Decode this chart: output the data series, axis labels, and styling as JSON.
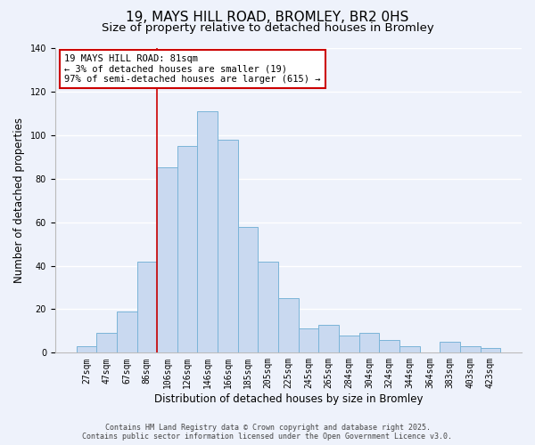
{
  "title": "19, MAYS HILL ROAD, BROMLEY, BR2 0HS",
  "subtitle": "Size of property relative to detached houses in Bromley",
  "xlabel": "Distribution of detached houses by size in Bromley",
  "ylabel": "Number of detached properties",
  "bar_labels": [
    "27sqm",
    "47sqm",
    "67sqm",
    "86sqm",
    "106sqm",
    "126sqm",
    "146sqm",
    "166sqm",
    "185sqm",
    "205sqm",
    "225sqm",
    "245sqm",
    "265sqm",
    "284sqm",
    "304sqm",
    "324sqm",
    "344sqm",
    "364sqm",
    "383sqm",
    "403sqm",
    "423sqm"
  ],
  "bar_values": [
    3,
    9,
    19,
    42,
    85,
    95,
    111,
    98,
    58,
    42,
    25,
    11,
    13,
    8,
    9,
    6,
    3,
    0,
    5,
    3,
    2
  ],
  "bar_color": "#c9d9f0",
  "bar_edge_color": "#7ab4d8",
  "vline_color": "#cc0000",
  "annotation_line1": "19 MAYS HILL ROAD: 81sqm",
  "annotation_line2": "← 3% of detached houses are smaller (19)",
  "annotation_line3": "97% of semi-detached houses are larger (615) →",
  "annotation_box_color": "#ffffff",
  "annotation_box_edge": "#cc0000",
  "ylim": [
    0,
    140
  ],
  "yticks": [
    0,
    20,
    40,
    60,
    80,
    100,
    120,
    140
  ],
  "footer_line1": "Contains HM Land Registry data © Crown copyright and database right 2025.",
  "footer_line2": "Contains public sector information licensed under the Open Government Licence v3.0.",
  "bg_color": "#eef2fb",
  "grid_color": "#ffffff",
  "title_fontsize": 11,
  "subtitle_fontsize": 9.5,
  "label_fontsize": 8.5,
  "tick_fontsize": 7,
  "annot_fontsize": 7.5,
  "footer_fontsize": 6.0,
  "vline_bar_index": 3
}
